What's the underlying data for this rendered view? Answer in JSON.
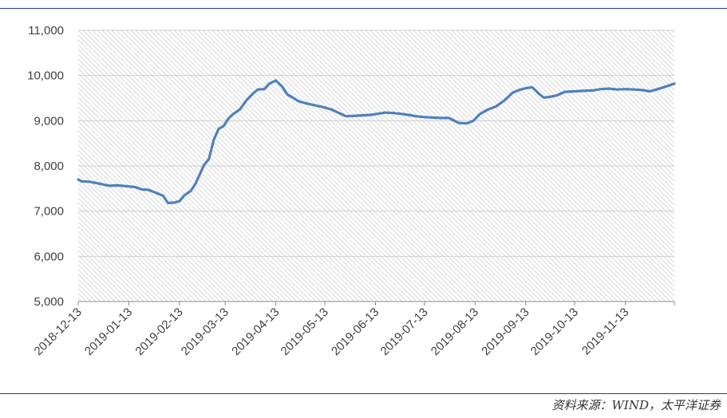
{
  "source_note": "资料来源：WIND，太平洋证券",
  "colors": {
    "line": "#4f81bd",
    "hatch": "#d9d9d9",
    "axis": "#8c8c8c",
    "rule": "#1f3a93"
  },
  "chart_data": {
    "type": "line",
    "title": "",
    "xlabel": "",
    "ylabel": "",
    "ylim": [
      5000,
      11000
    ],
    "yticks": [
      5000,
      6000,
      7000,
      8000,
      9000,
      10000,
      11000
    ],
    "ytick_labels": [
      "5,000",
      "6,000",
      "7,000",
      "8,000",
      "9,000",
      "10,000",
      "11,000"
    ],
    "xlim": [
      "2018-12-13",
      "2019-12-13"
    ],
    "xticks": [
      "2018-12-13",
      "2019-01-13",
      "2019-02-13",
      "2019-03-13",
      "2019-04-13",
      "2019-05-13",
      "2019-06-13",
      "2019-07-13",
      "2019-08-13",
      "2019-09-13",
      "2019-10-13",
      "2019-11-13"
    ],
    "background": "diagonal hatch",
    "series": [
      {
        "name": "",
        "x": [
          "2018-12-13",
          "2018-12-15",
          "2018-12-20",
          "2018-12-27",
          "2019-01-01",
          "2019-01-06",
          "2019-01-12",
          "2019-01-17",
          "2019-01-21",
          "2019-01-25",
          "2019-01-30",
          "2019-02-03",
          "2019-02-06",
          "2019-02-10",
          "2019-02-13",
          "2019-02-16",
          "2019-02-20",
          "2019-02-23",
          "2019-02-25",
          "2019-02-28",
          "2019-03-03",
          "2019-03-06",
          "2019-03-09",
          "2019-03-12",
          "2019-03-15",
          "2019-03-18",
          "2019-03-22",
          "2019-03-26",
          "2019-03-30",
          "2019-04-02",
          "2019-04-06",
          "2019-04-09",
          "2019-04-13",
          "2019-04-17",
          "2019-04-20",
          "2019-04-23",
          "2019-04-27",
          "2019-05-02",
          "2019-05-07",
          "2019-05-12",
          "2019-05-17",
          "2019-05-21",
          "2019-05-26",
          "2019-06-01",
          "2019-06-06",
          "2019-06-10",
          "2019-06-14",
          "2019-06-19",
          "2019-06-24",
          "2019-06-29",
          "2019-07-03",
          "2019-07-08",
          "2019-07-13",
          "2019-07-18",
          "2019-07-23",
          "2019-07-28",
          "2019-08-03",
          "2019-08-08",
          "2019-08-12",
          "2019-08-16",
          "2019-08-21",
          "2019-08-26",
          "2019-08-31",
          "2019-09-05",
          "2019-09-09",
          "2019-09-13",
          "2019-09-17",
          "2019-09-21",
          "2019-09-24",
          "2019-09-28",
          "2019-10-02",
          "2019-10-07",
          "2019-10-13",
          "2019-10-18",
          "2019-10-24",
          "2019-10-29",
          "2019-11-03",
          "2019-11-08",
          "2019-11-13",
          "2019-11-18",
          "2019-11-23",
          "2019-11-28",
          "2019-12-03",
          "2019-12-08",
          "2019-12-13"
        ],
        "y": [
          7700,
          7660,
          7650,
          7600,
          7560,
          7570,
          7550,
          7530,
          7480,
          7470,
          7400,
          7340,
          7180,
          7190,
          7220,
          7350,
          7450,
          7620,
          7780,
          8020,
          8150,
          8580,
          8820,
          8880,
          9050,
          9150,
          9250,
          9450,
          9600,
          9690,
          9700,
          9820,
          9890,
          9750,
          9580,
          9520,
          9430,
          9380,
          9340,
          9300,
          9250,
          9180,
          9100,
          9110,
          9120,
          9130,
          9150,
          9180,
          9170,
          9150,
          9130,
          9100,
          9080,
          9070,
          9060,
          9060,
          8950,
          8940,
          9000,
          9150,
          9250,
          9320,
          9450,
          9620,
          9680,
          9720,
          9740,
          9600,
          9510,
          9530,
          9560,
          9640,
          9650,
          9660,
          9670,
          9700,
          9710,
          9690,
          9700,
          9690,
          9680,
          9650,
          9700,
          9760,
          9820
        ]
      }
    ]
  }
}
